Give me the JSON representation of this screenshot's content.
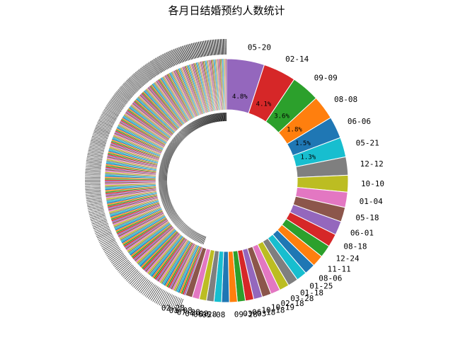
{
  "chart_data": {
    "type": "pie",
    "title": "各月日结婚预约人数统计",
    "palette": [
      "#9467bd",
      "#d62728",
      "#2ca02c",
      "#ff7f0e",
      "#1f77b4",
      "#17becf",
      "#7f7f7f",
      "#bcbd22",
      "#e377c2",
      "#8c564b"
    ],
    "labels": [
      "05-20",
      "02-14",
      "09-09",
      "08-08",
      "06-06",
      "05-21",
      "12-12",
      "10-10",
      "01-04",
      "05-18",
      "06-01",
      "08-18",
      "12-24",
      "11-11",
      "08-06",
      "01-25",
      "01-18",
      "03-28",
      "02-18",
      "10-19",
      "10-18",
      "06-18",
      "03-03",
      "09-28",
      "05-08",
      "06-28",
      "04-08",
      "07-28",
      "01-08",
      "02-28"
    ],
    "values": [
      5.2,
      4.5,
      3.9,
      3.3,
      3.0,
      2.7,
      2.5,
      2.3,
      2.1,
      2.0,
      1.9,
      1.8,
      1.7,
      1.6,
      1.5,
      1.45,
      1.4,
      1.35,
      1.3,
      1.25,
      1.2,
      1.15,
      1.1,
      1.08,
      1.06,
      1.04,
      1.02,
      1.0,
      0.98,
      0.96
    ],
    "percent_labels_visible": [
      "4.8%",
      "4.1%",
      "3.6%",
      "1.8%",
      "1.5%",
      "1.3%"
    ],
    "remaining_slices": 280,
    "remaining_share_percent": 46
  }
}
